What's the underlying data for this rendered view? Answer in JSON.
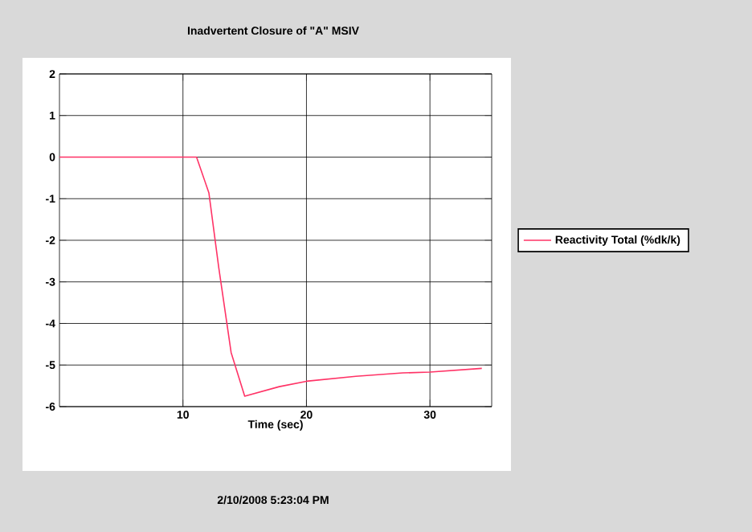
{
  "chart_data": {
    "type": "line",
    "title": "Inadvertent Closure of \"A\" MSIV",
    "xlabel": "Time (sec)",
    "x": [
      0,
      2,
      4,
      6,
      8,
      10,
      11.1,
      12.1,
      12.9,
      13.9,
      15.0,
      17.8,
      20,
      24,
      27.8,
      30,
      34.2
    ],
    "series": [
      {
        "name": "Reactivity Total (%dk/k)",
        "color": "#ff3366",
        "values": [
          0,
          0,
          0,
          0,
          0,
          0,
          0,
          -0.86,
          -2.66,
          -4.7,
          -5.75,
          -5.52,
          -5.39,
          -5.27,
          -5.19,
          -5.17,
          -5.08
        ]
      }
    ],
    "xlim": [
      0,
      35
    ],
    "xticks": [
      10,
      20,
      30
    ],
    "ylim": [
      -6,
      2
    ],
    "yticks": [
      -6,
      -5,
      -4,
      -3,
      -2,
      -1,
      0,
      1,
      2
    ],
    "grid": true,
    "legend": "right",
    "marker": "none",
    "line_style": "solid",
    "annotations": [
      "2/10/2008 5:23:04 PM"
    ]
  }
}
